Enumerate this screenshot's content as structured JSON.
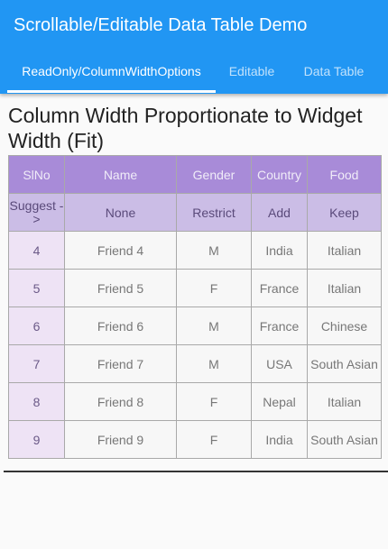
{
  "app": {
    "title": "Scrollable/Editable Data Table Demo"
  },
  "tabs": [
    {
      "label": "ReadOnly/ColumnWidthOptions"
    },
    {
      "label": "Editable"
    },
    {
      "label": "Data Table"
    }
  ],
  "section": {
    "heading": "Column Width Proportionate to Widget Width (Fit)"
  },
  "table": {
    "headers": [
      "SlNo",
      "Name",
      "Gender",
      "Country",
      "Food"
    ],
    "width_options": [
      "Suggest ->",
      "None",
      "Restrict",
      "Add",
      "Keep"
    ],
    "rows": [
      [
        "4",
        "Friend 4",
        "M",
        "India",
        "Italian"
      ],
      [
        "5",
        "Friend 5",
        "F",
        "France",
        "Italian"
      ],
      [
        "6",
        "Friend 6",
        "M",
        "France",
        "Chinese"
      ],
      [
        "7",
        "Friend 7",
        "M",
        "USA",
        "South Asian"
      ],
      [
        "8",
        "Friend 8",
        "F",
        "Nepal",
        "Italian"
      ],
      [
        "9",
        "Friend 9",
        "F",
        "India",
        "South Asian"
      ]
    ]
  },
  "colors": {
    "appbar": "#2196f3",
    "header_row": "#a88bd8",
    "option_row": "#cbbde6",
    "index_cell": "#eee3f5"
  }
}
